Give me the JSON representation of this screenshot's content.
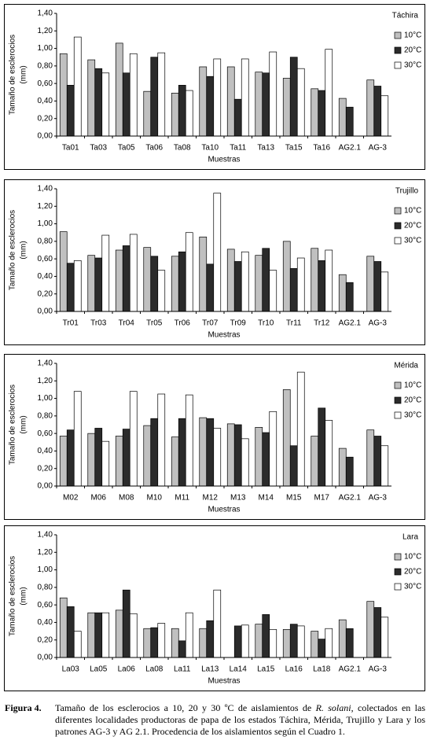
{
  "chart_data": [
    {
      "type": "bar",
      "title": "Táchira",
      "ylabel": [
        "Tamaño de esclerocios",
        "(mm)"
      ],
      "xlabel": "Muestras",
      "legend": "right",
      "categories": [
        "Ta01",
        "Ta03",
        "Ta05",
        "Ta06",
        "Ta08",
        "Ta10",
        "Ta11",
        "Ta13",
        "Ta15",
        "Ta16",
        "AG2.1",
        "AG-3"
      ],
      "series": [
        {
          "name": "10°C",
          "color": "#c0c0c0",
          "values": [
            0.94,
            0.87,
            1.06,
            0.51,
            0.49,
            0.79,
            0.79,
            0.73,
            0.66,
            0.54,
            0.43,
            0.64
          ]
        },
        {
          "name": "20°C",
          "color": "#2b2b2b",
          "values": [
            0.58,
            0.77,
            0.72,
            0.9,
            0.58,
            0.68,
            0.42,
            0.72,
            0.9,
            0.52,
            0.33,
            0.57
          ]
        },
        {
          "name": "30°C",
          "color": "#ffffff",
          "values": [
            1.13,
            0.72,
            0.94,
            0.95,
            0.52,
            0.88,
            0.88,
            0.96,
            0.77,
            0.99,
            null,
            0.46
          ]
        }
      ],
      "ylim": [
        0,
        1.4
      ],
      "yticks": [
        {
          "value": 0,
          "label": "0,00"
        },
        {
          "value": 0.2,
          "label": "0,20"
        },
        {
          "value": 0.4,
          "label": "0,40"
        },
        {
          "value": 0.6,
          "label": "0,60"
        },
        {
          "value": 0.8,
          "label": "0,80"
        },
        {
          "value": 1.0,
          "label": "1,00"
        },
        {
          "value": 1.2,
          "label": "1,20"
        },
        {
          "value": 1.4,
          "label": "1,40"
        }
      ]
    },
    {
      "type": "bar",
      "title": "Trujillo",
      "ylabel": [
        "Tamaño de esclerocios",
        "(mm)"
      ],
      "xlabel": "Muestras",
      "legend": "right",
      "categories": [
        "Tr01",
        "Tr03",
        "Tr04",
        "Tr05",
        "Tr06",
        "Tr07",
        "Tr09",
        "Tr10",
        "Tr11",
        "Tr12",
        "AG2.1",
        "AG-3"
      ],
      "series": [
        {
          "name": "10°C",
          "color": "#c0c0c0",
          "values": [
            0.91,
            0.64,
            0.7,
            0.73,
            0.63,
            0.85,
            0.71,
            0.64,
            0.8,
            0.72,
            0.42,
            0.63
          ]
        },
        {
          "name": "20°C",
          "color": "#2b2b2b",
          "values": [
            0.55,
            0.61,
            0.75,
            0.63,
            0.68,
            0.54,
            0.57,
            0.72,
            0.49,
            0.58,
            0.33,
            0.57
          ]
        },
        {
          "name": "30°C",
          "color": "#ffffff",
          "values": [
            0.58,
            0.87,
            0.88,
            0.47,
            0.9,
            1.35,
            0.68,
            0.47,
            0.61,
            0.7,
            null,
            0.45
          ]
        }
      ],
      "ylim": [
        0,
        1.4
      ],
      "yticks": [
        {
          "value": 0,
          "label": "0,00"
        },
        {
          "value": 0.2,
          "label": "0,20"
        },
        {
          "value": 0.4,
          "label": "0,40"
        },
        {
          "value": 0.6,
          "label": "0,60"
        },
        {
          "value": 0.8,
          "label": "0,80"
        },
        {
          "value": 1.0,
          "label": "1,00"
        },
        {
          "value": 1.2,
          "label": "1,20"
        },
        {
          "value": 1.4,
          "label": "1,40"
        }
      ]
    },
    {
      "type": "bar",
      "title": "Mérida",
      "ylabel": [
        "Tamaño de esclerocios",
        "(mm)"
      ],
      "xlabel": "Muestras",
      "legend": "right",
      "categories": [
        "M02",
        "M06",
        "M08",
        "M10",
        "M11",
        "M12",
        "M13",
        "M14",
        "M15",
        "M17",
        "AG2.1",
        "AG-3"
      ],
      "series": [
        {
          "name": "10°C",
          "color": "#c0c0c0",
          "values": [
            0.57,
            0.6,
            0.57,
            0.69,
            0.56,
            0.78,
            0.71,
            0.67,
            1.1,
            0.57,
            0.43,
            0.64
          ]
        },
        {
          "name": "20°C",
          "color": "#2b2b2b",
          "values": [
            0.64,
            0.66,
            0.65,
            0.77,
            0.77,
            0.77,
            0.7,
            0.61,
            0.46,
            0.89,
            0.33,
            0.57
          ]
        },
        {
          "name": "30°C",
          "color": "#ffffff",
          "values": [
            1.08,
            0.51,
            1.08,
            1.05,
            1.04,
            0.66,
            0.54,
            0.85,
            1.3,
            0.75,
            null,
            0.46
          ]
        }
      ],
      "ylim": [
        0,
        1.4
      ],
      "yticks": [
        {
          "value": 0,
          "label": "0,00"
        },
        {
          "value": 0.2,
          "label": "0,20"
        },
        {
          "value": 0.4,
          "label": "0,40"
        },
        {
          "value": 0.6,
          "label": "0,60"
        },
        {
          "value": 0.8,
          "label": "0,80"
        },
        {
          "value": 1.0,
          "label": "1,00"
        },
        {
          "value": 1.2,
          "label": "1,20"
        },
        {
          "value": 1.4,
          "label": "1,40"
        }
      ]
    },
    {
      "type": "bar",
      "title": "Lara",
      "ylabel": [
        "Tamaño de esclerocios",
        "(mm)"
      ],
      "xlabel": "Muestras",
      "legend": "right",
      "categories": [
        "La03",
        "La05",
        "La06",
        "La08",
        "La11",
        "La13",
        "La14",
        "La15",
        "La16",
        "La18",
        "AG2.1",
        "AG-3"
      ],
      "series": [
        {
          "name": "10°C",
          "color": "#c0c0c0",
          "values": [
            0.68,
            0.51,
            0.54,
            0.33,
            0.33,
            0.33,
            null,
            0.38,
            0.32,
            0.3,
            0.43,
            0.64
          ]
        },
        {
          "name": "20°C",
          "color": "#2b2b2b",
          "values": [
            0.58,
            0.51,
            0.77,
            0.34,
            0.19,
            0.42,
            0.36,
            0.49,
            0.38,
            0.21,
            0.33,
            0.57
          ]
        },
        {
          "name": "30°C",
          "color": "#ffffff",
          "values": [
            0.3,
            0.51,
            0.5,
            0.39,
            0.51,
            0.77,
            0.37,
            0.32,
            0.36,
            0.33,
            null,
            0.46
          ]
        }
      ],
      "ylim": [
        0,
        1.4
      ],
      "yticks": [
        {
          "value": 0,
          "label": "0,00"
        },
        {
          "value": 0.2,
          "label": "0,20"
        },
        {
          "value": 0.4,
          "label": "0,40"
        },
        {
          "value": 0.6,
          "label": "0,60"
        },
        {
          "value": 0.8,
          "label": "0,80"
        },
        {
          "value": 1.0,
          "label": "1,00"
        },
        {
          "value": 1.2,
          "label": "1,20"
        },
        {
          "value": 1.4,
          "label": "1,40"
        }
      ]
    }
  ],
  "caption": {
    "label": "Figura 4.",
    "text_before": "Tamaño de los esclerocios a 10, 20 y 30 ºC de aislamientos de ",
    "species": "R. solani",
    "text_after": ", colectados en las diferentes localidades productoras de papa de los estados Táchira, Mérida, Trujillo y Lara y los patrones AG-3 y AG 2.1. Procedencia de los aislamientos según el Cuadro 1."
  }
}
